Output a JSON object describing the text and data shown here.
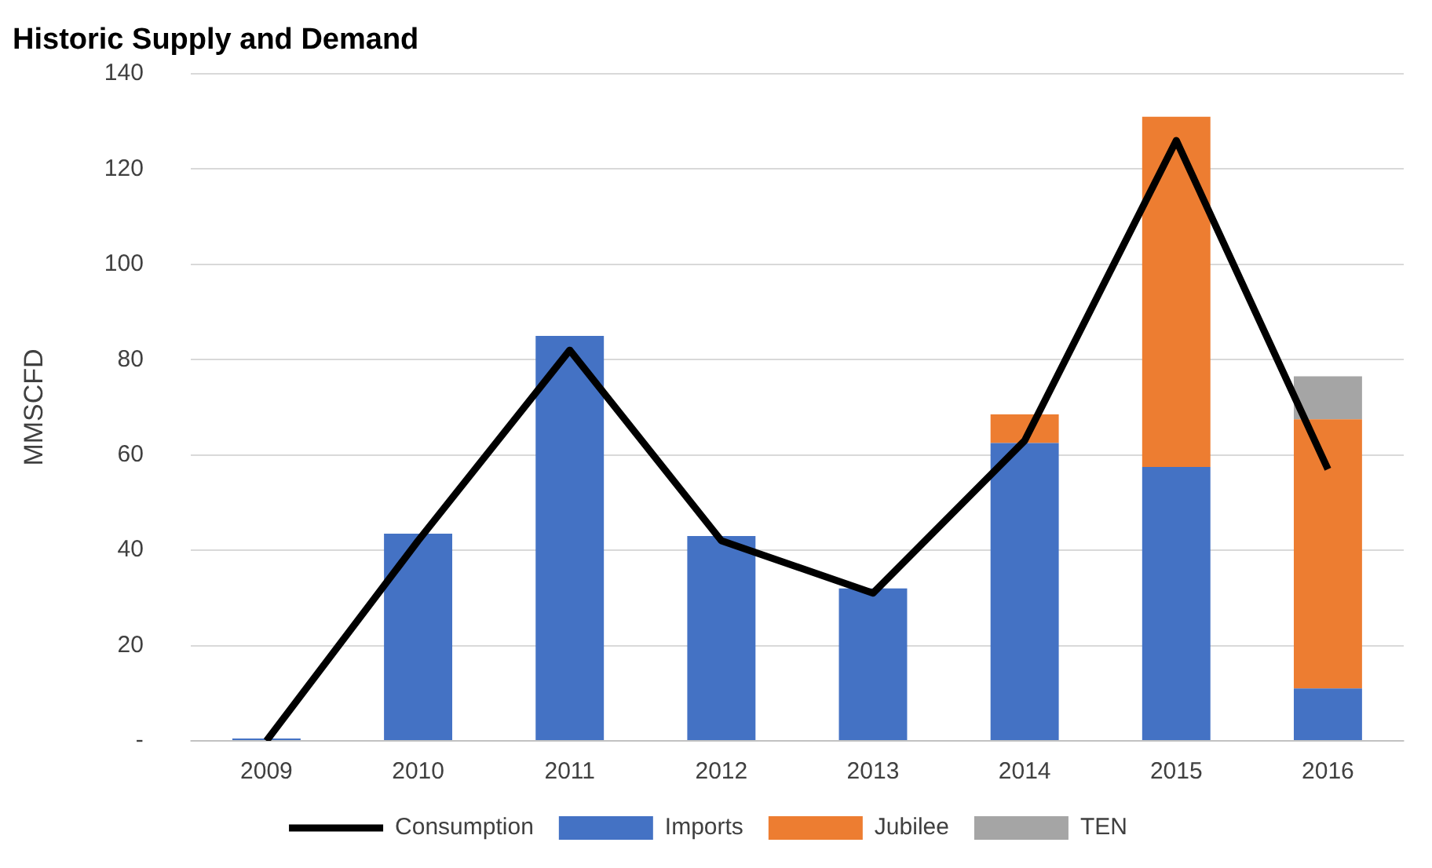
{
  "chart_data": {
    "type": "bar",
    "title": "Historic Supply and Demand",
    "ylabel": "MMSCFD",
    "stacked": true,
    "categories": [
      "2009",
      "2010",
      "2011",
      "2012",
      "2013",
      "2014",
      "2015",
      "2016"
    ],
    "series": [
      {
        "name": "Imports",
        "color": "#4472c4",
        "values": [
          0.5,
          43.5,
          85,
          43,
          32,
          62.5,
          57.5,
          11
        ]
      },
      {
        "name": "Jubilee",
        "color": "#ed7d31",
        "values": [
          0,
          0,
          0,
          0,
          0,
          6,
          73.5,
          56.5
        ]
      },
      {
        "name": "TEN",
        "color": "#a5a5a5",
        "values": [
          0,
          0,
          0,
          0,
          0,
          0,
          0,
          9
        ]
      },
      {
        "name": "Consumption",
        "type": "line",
        "color": "#000000",
        "marker": "none",
        "values": [
          0,
          42,
          82,
          42,
          31,
          63,
          126,
          57
        ]
      }
    ],
    "ylim": [
      0,
      140
    ],
    "yticks": [
      {
        "value": 0,
        "label": "-"
      },
      20,
      40,
      60,
      80,
      100,
      120,
      140
    ],
    "grid": "y",
    "legend": "bottom"
  }
}
